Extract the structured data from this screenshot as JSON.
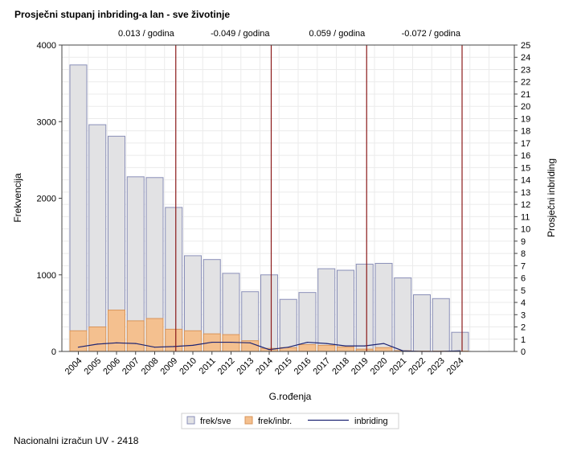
{
  "title": "Prosječni stupanj inbriding-a lan - sve životinje",
  "footnote": "Nacionalni izračun UV - 2418",
  "colors": {
    "bar_all_fill": "#e2e2e4",
    "bar_all_stroke": "#8a8fb8",
    "bar_inbr_fill": "#f4c08f",
    "bar_inbr_stroke": "#d9955a",
    "line": "#1e2573",
    "vline": "#8b1a1a",
    "grid": "#ebebeb"
  },
  "chart_data": {
    "type": "bar",
    "categories": [
      "2004",
      "2005",
      "2006",
      "2007",
      "2008",
      "2009",
      "2010",
      "2011",
      "2012",
      "2013",
      "2014",
      "2015",
      "2016",
      "2017",
      "2018",
      "2019",
      "2020",
      "2021",
      "2022",
      "2023",
      "2024"
    ],
    "series": [
      {
        "name": "frek/sve",
        "type": "bar",
        "axis": "left",
        "values": [
          3740,
          2960,
          2810,
          2280,
          2270,
          1880,
          1250,
          1200,
          1020,
          780,
          1000,
          680,
          770,
          1080,
          1060,
          1140,
          1150,
          960,
          740,
          690,
          250
        ]
      },
      {
        "name": "frek/inbr.",
        "type": "bar",
        "axis": "left",
        "values": [
          270,
          320,
          540,
          400,
          430,
          290,
          270,
          230,
          220,
          140,
          40,
          50,
          90,
          80,
          60,
          30,
          50,
          10,
          5,
          5,
          5
        ]
      },
      {
        "name": "inbriding",
        "type": "line",
        "axis": "right",
        "values": [
          0.35,
          0.6,
          0.7,
          0.65,
          0.35,
          0.4,
          0.5,
          0.75,
          0.75,
          0.7,
          0.15,
          0.35,
          0.75,
          0.65,
          0.45,
          0.45,
          0.65,
          0.05,
          0.0,
          0.0,
          0.05
        ]
      }
    ],
    "xlabel": "G.rođenja",
    "ylabel": "Frekvencija",
    "y2label": "Prosječni inbriding",
    "ylim": [
      0,
      4000
    ],
    "y2lim": [
      0,
      25
    ],
    "yticks": [
      0,
      1000,
      2000,
      3000,
      4000
    ],
    "y2ticks": [
      0,
      1,
      2,
      3,
      4,
      5,
      6,
      7,
      8,
      9,
      10,
      11,
      12,
      13,
      14,
      15,
      16,
      17,
      18,
      19,
      20,
      21,
      22,
      23,
      24,
      25
    ],
    "reference_lines": [
      {
        "at_category_boundary": "2009",
        "label": "0.013 / godina"
      },
      {
        "at_category_boundary": "2014",
        "label": "-0.049 / godina"
      },
      {
        "at_category_boundary": "2019",
        "label": "0.059 / godina"
      },
      {
        "at_category_boundary": "2024",
        "label": "-0.072 / godina"
      }
    ],
    "grid": true,
    "legend_position": "bottom"
  }
}
